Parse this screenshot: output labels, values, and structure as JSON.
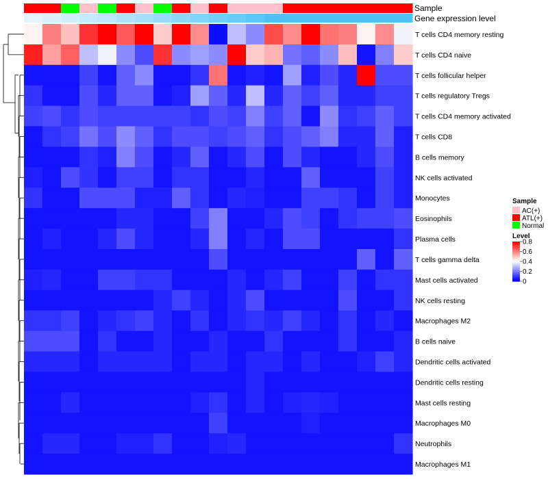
{
  "chart_data": {
    "type": "heatmap",
    "title": "",
    "colors": {
      "low": "#0000ff",
      "mid": "#ffffff",
      "high": "#ff0000"
    },
    "color_breaks": [
      0,
      0.4,
      0.8
    ],
    "annotations": {
      "sample": {
        "label": "Sample",
        "values": [
          "ATL(+)",
          "ATL(+)",
          "Normal",
          "AC(+)",
          "Normal",
          "ATL(+)",
          "AC(+)",
          "Normal",
          "ATL(+)",
          "AC(+)",
          "ATL(+)",
          "AC(+)",
          "AC(+)",
          "AC(+)",
          "ATL(+)",
          "ATL(+)",
          "ATL(+)",
          "ATL(+)",
          "ATL(+)",
          "ATL(+)",
          "ATL(+)"
        ]
      },
      "gene_expression": {
        "label": "Gene expression level",
        "values": [
          0.02,
          0.05,
          0.08,
          0.12,
          0.15,
          0.19,
          0.22,
          0.26,
          0.3,
          0.34,
          0.38,
          0.42,
          0.46,
          0.5,
          0.55,
          0.6,
          0.65,
          0.7,
          0.75,
          0.8,
          0.85
        ]
      }
    },
    "rows": [
      "T cells CD4 memory resting",
      "T cells CD4 naive",
      "T cells follicular helper",
      "T cells regulatory  Tregs",
      "T cells CD4 memory activated",
      "T cells CD8",
      "B cells memory",
      "NK cells activated",
      "Monocytes",
      "Eosinophils",
      "Plasma cells",
      "T cells gamma delta",
      "Mast cells activated",
      "NK cells resting",
      "Macrophages M2",
      "B cells naive",
      "Dendritic cells activated",
      "Dendritic cells resting",
      "Mast cells resting",
      "Macrophages M0",
      "Neutrophils",
      "Macrophages M1"
    ],
    "values": [
      [
        0.42,
        0.6,
        0.5,
        0.72,
        0.82,
        0.66,
        0.8,
        0.48,
        0.8,
        0.58,
        0.02,
        0.3,
        0.22,
        0.68,
        0.58,
        0.8,
        0.62,
        0.6,
        0.42,
        0.58,
        0.38
      ],
      [
        0.75,
        0.55,
        0.65,
        0.3,
        0.38,
        0.22,
        0.12,
        0.72,
        0.22,
        0.25,
        0.22,
        0.8,
        0.48,
        0.52,
        0.18,
        0.15,
        0.22,
        0.5,
        0.03,
        0.2,
        0.48
      ],
      [
        0.03,
        0.03,
        0.03,
        0.1,
        0.03,
        0.15,
        0.22,
        0.03,
        0.03,
        0.08,
        0.62,
        0.03,
        0.05,
        0.03,
        0.25,
        0.05,
        0.12,
        0.06,
        0.85,
        0.12,
        0.12
      ],
      [
        0.08,
        0.03,
        0.03,
        0.12,
        0.06,
        0.15,
        0.15,
        0.03,
        0.05,
        0.25,
        0.15,
        0.06,
        0.3,
        0.06,
        0.15,
        0.1,
        0.15,
        0.06,
        0.06,
        0.1,
        0.1
      ],
      [
        0.1,
        0.12,
        0.08,
        0.12,
        0.1,
        0.1,
        0.1,
        0.1,
        0.1,
        0.08,
        0.12,
        0.1,
        0.2,
        0.1,
        0.15,
        0.03,
        0.22,
        0.08,
        0.1,
        0.15,
        0.1
      ],
      [
        0.03,
        0.08,
        0.1,
        0.18,
        0.12,
        0.22,
        0.15,
        0.08,
        0.12,
        0.12,
        0.1,
        0.12,
        0.15,
        0.08,
        0.12,
        0.15,
        0.2,
        0.06,
        0.06,
        0.15,
        0.05
      ],
      [
        0.03,
        0.03,
        0.03,
        0.08,
        0.05,
        0.2,
        0.12,
        0.03,
        0.06,
        0.15,
        0.03,
        0.06,
        0.12,
        0.03,
        0.12,
        0.06,
        0.03,
        0.03,
        0.06,
        0.12,
        0.05
      ],
      [
        0.05,
        0.03,
        0.12,
        0.08,
        0.03,
        0.1,
        0.1,
        0.03,
        0.08,
        0.08,
        0.03,
        0.03,
        0.06,
        0.03,
        0.03,
        0.15,
        0.03,
        0.03,
        0.03,
        0.1,
        0.05
      ],
      [
        0.08,
        0.03,
        0.03,
        0.12,
        0.12,
        0.12,
        0.05,
        0.05,
        0.15,
        0.08,
        0.03,
        0.06,
        0.05,
        0.03,
        0.03,
        0.1,
        0.1,
        0.08,
        0.03,
        0.1,
        0.05
      ],
      [
        0.03,
        0.03,
        0.03,
        0.03,
        0.03,
        0.06,
        0.06,
        0.03,
        0.03,
        0.1,
        0.2,
        0.03,
        0.03,
        0.06,
        0.12,
        0.1,
        0.03,
        0.08,
        0.1,
        0.1,
        0.12
      ],
      [
        0.03,
        0.05,
        0.03,
        0.03,
        0.06,
        0.12,
        0.06,
        0.03,
        0.03,
        0.06,
        0.2,
        0.03,
        0.06,
        0.03,
        0.12,
        0.12,
        0.03,
        0.03,
        0.03,
        0.03,
        0.08
      ],
      [
        0.03,
        0.03,
        0.03,
        0.03,
        0.03,
        0.03,
        0.03,
        0.03,
        0.03,
        0.03,
        0.12,
        0.03,
        0.03,
        0.03,
        0.03,
        0.03,
        0.03,
        0.03,
        0.15,
        0.03,
        0.15
      ],
      [
        0.05,
        0.06,
        0.03,
        0.03,
        0.1,
        0.1,
        0.08,
        0.08,
        0.03,
        0.03,
        0.03,
        0.06,
        0.03,
        0.06,
        0.1,
        0.03,
        0.03,
        0.1,
        0.03,
        0.08,
        0.08
      ],
      [
        0.03,
        0.03,
        0.03,
        0.03,
        0.03,
        0.03,
        0.03,
        0.06,
        0.1,
        0.06,
        0.03,
        0.06,
        0.12,
        0.03,
        0.03,
        0.03,
        0.03,
        0.12,
        0.03,
        0.03,
        0.08
      ],
      [
        0.08,
        0.08,
        0.1,
        0.03,
        0.06,
        0.08,
        0.1,
        0.06,
        0.03,
        0.08,
        0.03,
        0.06,
        0.08,
        0.06,
        0.1,
        0.06,
        0.03,
        0.08,
        0.03,
        0.06,
        0.03
      ],
      [
        0.12,
        0.12,
        0.12,
        0.03,
        0.08,
        0.03,
        0.03,
        0.06,
        0.03,
        0.03,
        0.06,
        0.03,
        0.03,
        0.08,
        0.03,
        0.03,
        0.03,
        0.08,
        0.03,
        0.03,
        0.06
      ],
      [
        0.06,
        0.06,
        0.06,
        0.03,
        0.06,
        0.06,
        0.06,
        0.06,
        0.03,
        0.06,
        0.06,
        0.03,
        0.06,
        0.06,
        0.03,
        0.06,
        0.03,
        0.03,
        0.05,
        0.1,
        0.06
      ],
      [
        0.03,
        0.03,
        0.03,
        0.03,
        0.03,
        0.03,
        0.03,
        0.03,
        0.03,
        0.03,
        0.03,
        0.03,
        0.06,
        0.03,
        0.03,
        0.03,
        0.03,
        0.03,
        0.03,
        0.03,
        0.03
      ],
      [
        0.03,
        0.03,
        0.06,
        0.03,
        0.03,
        0.03,
        0.03,
        0.03,
        0.03,
        0.05,
        0.08,
        0.03,
        0.06,
        0.03,
        0.05,
        0.06,
        0.05,
        0.03,
        0.03,
        0.03,
        0.03
      ],
      [
        0.03,
        0.03,
        0.03,
        0.03,
        0.03,
        0.03,
        0.03,
        0.03,
        0.03,
        0.03,
        0.1,
        0.03,
        0.03,
        0.03,
        0.03,
        0.05,
        0.03,
        0.03,
        0.03,
        0.03,
        0.03
      ],
      [
        0.03,
        0.06,
        0.06,
        0.03,
        0.03,
        0.05,
        0.05,
        0.08,
        0.03,
        0.03,
        0.05,
        0.06,
        0.03,
        0.03,
        0.03,
        0.03,
        0.03,
        0.03,
        0.03,
        0.03,
        0.08
      ],
      [
        0.03,
        0.03,
        0.03,
        0.03,
        0.03,
        0.03,
        0.03,
        0.03,
        0.03,
        0.03,
        0.03,
        0.03,
        0.03,
        0.03,
        0.03,
        0.03,
        0.03,
        0.03,
        0.03,
        0.03,
        0.03
      ]
    ],
    "legend": {
      "sample_title": "Sample",
      "sample_entries": [
        {
          "label": "AC(+)",
          "color": "#ffc0cb"
        },
        {
          "label": "ATL(+)",
          "color": "#ff0000"
        },
        {
          "label": "Normal",
          "color": "#00ff00"
        }
      ],
      "level_title": "Level",
      "level_ticks": [
        "0.8",
        "0.6",
        "0.4",
        "0.2",
        "0"
      ],
      "position": "right"
    }
  }
}
